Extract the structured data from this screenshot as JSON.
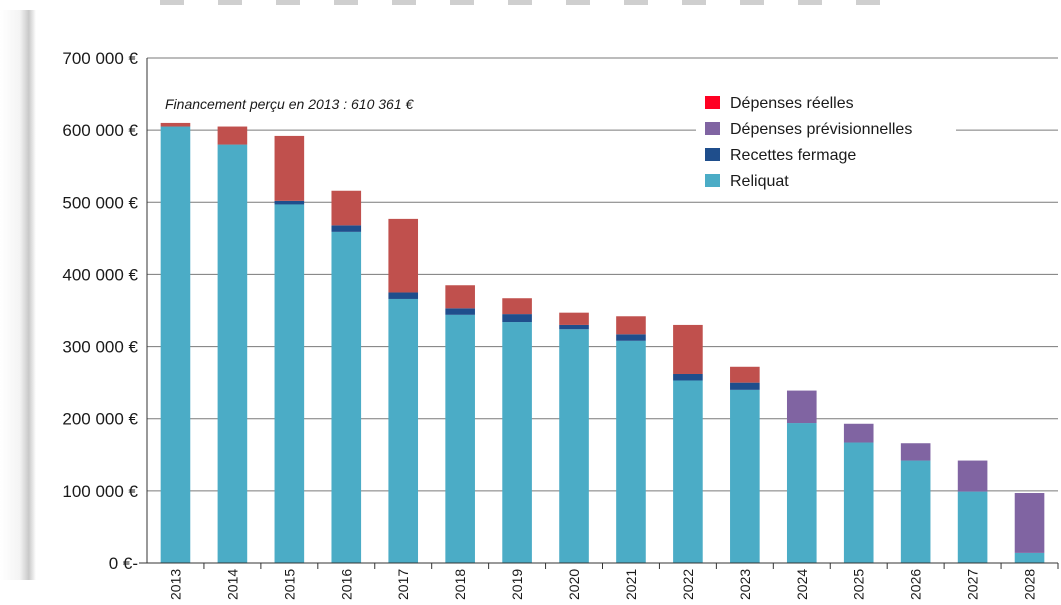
{
  "chart_data": {
    "type": "bar",
    "stacked": true,
    "title": "",
    "xlabel": "",
    "ylabel": "",
    "ylim": [
      0,
      700000
    ],
    "yticks": [
      0,
      100000,
      200000,
      300000,
      400000,
      500000,
      600000,
      700000
    ],
    "ytick_labels": [
      "0 €-",
      "100 000 €",
      "200 000 €",
      "300 000 €",
      "400 000 €",
      "500 000 €",
      "600 000 €",
      "700 000 €"
    ],
    "grid": true,
    "legend_position": "top-right",
    "annotation": "Financement perçu en 2013 : 610 361 €",
    "categories": [
      "2013",
      "2014",
      "2015",
      "2016",
      "2017",
      "2018",
      "2019",
      "2020",
      "2021",
      "2022",
      "2023",
      "2024",
      "2025",
      "2026",
      "2027",
      "2028"
    ],
    "series": [
      {
        "name": "Reliquat",
        "color": "#4bacc6",
        "values": [
          605000,
          580000,
          497000,
          459000,
          366000,
          344000,
          334000,
          324000,
          308000,
          253000,
          240000,
          194000,
          167000,
          142000,
          99000,
          14000
        ]
      },
      {
        "name": "Recettes fermage",
        "color": "#1f4e8c",
        "values": [
          0,
          0,
          5000,
          9000,
          9000,
          9000,
          11000,
          6000,
          9000,
          9000,
          10000,
          0,
          0,
          0,
          0,
          0
        ]
      },
      {
        "name": "Dépenses réelles",
        "color": "#c0504d",
        "values": [
          5000,
          25000,
          90000,
          48000,
          102000,
          32000,
          22000,
          17000,
          25000,
          68000,
          22000,
          0,
          0,
          0,
          0,
          0
        ]
      },
      {
        "name": "Dépenses prévisionnelles",
        "color": "#8064a2",
        "values": [
          0,
          0,
          0,
          0,
          0,
          0,
          0,
          0,
          0,
          0,
          0,
          45000,
          26000,
          24000,
          43000,
          83000
        ]
      }
    ],
    "legend": [
      {
        "name": "Dépenses réelles",
        "color": "#ff0022"
      },
      {
        "name": "Dépenses prévisionnelles",
        "color": "#8064a2"
      },
      {
        "name": "Recettes fermage",
        "color": "#1f4e8c"
      },
      {
        "name": "Reliquat",
        "color": "#4bacc6"
      }
    ]
  }
}
